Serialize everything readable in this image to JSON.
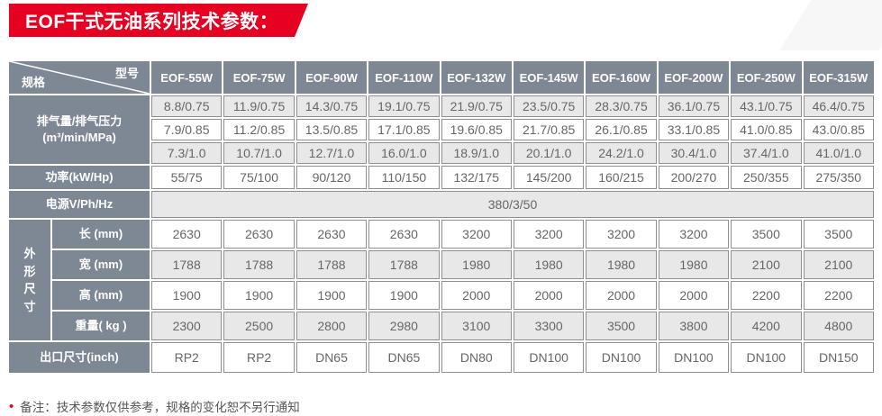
{
  "title": "EOF干式无油系列技术参数：",
  "colors": {
    "accent_red": "#e60021",
    "header_slate": "#7e8794",
    "row_shade": "#e8e8e8",
    "cell_border": "#8f8f8f",
    "data_text": "#666666"
  },
  "table": {
    "corner": {
      "top_right": "型号",
      "bottom_left": "规格"
    },
    "columns": [
      "EOF-55W",
      "EOF-75W",
      "EOF-90W",
      "EOF-110W",
      "EOF-132W",
      "EOF-145W",
      "EOF-160W",
      "EOF-200W",
      "EOF-250W",
      "EOF-315W"
    ],
    "rows": [
      {
        "label": "排气量/排气压力\n(m³/min/MPa)",
        "label_rowspan": 3,
        "shaded": true,
        "values": [
          "8.8/0.75",
          "11.9/0.75",
          "14.3/0.75",
          "19.1/0.75",
          "21.9/0.75",
          "23.5/0.75",
          "28.3/0.75",
          "36.1/0.75",
          "43.1/0.75",
          "46.4/0.75"
        ]
      },
      {
        "shaded": false,
        "values": [
          "7.9/0.85",
          "11.2/0.85",
          "13.5/0.85",
          "17.1/0.85",
          "19.6/0.85",
          "21.7/0.85",
          "26.1/0.85",
          "33.1/0.85",
          "41.0/0.85",
          "43.0/0.85"
        ]
      },
      {
        "shaded": true,
        "values": [
          "7.3/1.0",
          "10.7/1.0",
          "12.7/1.0",
          "16.0/1.0",
          "18.9/1.0",
          "20.1/1.0",
          "24.2/1.0",
          "30.4/1.0",
          "37.4/1.0",
          "41.0/1.0"
        ]
      },
      {
        "label": "功率(kW/Hp)",
        "shaded": false,
        "values": [
          "55/75",
          "75/100",
          "90/120",
          "110/150",
          "132/175",
          "145/200",
          "160/215",
          "200/270",
          "250/355",
          "275/350"
        ]
      },
      {
        "label": "电源V/Ph/Hz",
        "shaded": true,
        "merged_value": "380/3/50"
      },
      {
        "group_label": "外形尺寸",
        "group_rowspan": 4,
        "sublabel": "长 (mm)",
        "shaded": false,
        "values": [
          "2630",
          "2630",
          "2630",
          "2630",
          "3200",
          "3200",
          "3200",
          "3200",
          "3500",
          "3500"
        ]
      },
      {
        "sublabel": "宽 (mm)",
        "shaded": true,
        "values": [
          "1788",
          "1788",
          "1788",
          "1788",
          "1980",
          "1980",
          "1980",
          "1980",
          "2100",
          "2100"
        ]
      },
      {
        "sublabel": "高 (mm)",
        "shaded": false,
        "values": [
          "1900",
          "1900",
          "1900",
          "1900",
          "2000",
          "2000",
          "2000",
          "2000",
          "2200",
          "2200"
        ]
      },
      {
        "sublabel": "重量( kg )",
        "shaded": true,
        "values": [
          "2300",
          "2500",
          "2800",
          "2980",
          "3100",
          "3300",
          "3500",
          "3800",
          "4200",
          "4800"
        ]
      },
      {
        "label": "出口尺寸(inch)",
        "shaded": false,
        "values": [
          "RP2",
          "RP2",
          "DN65",
          "DN65",
          "DN80",
          "DN100",
          "DN100",
          "DN100",
          "DN100",
          "DN150"
        ]
      }
    ]
  },
  "footer": {
    "bullet": "•",
    "note": "备注：技术参数仅供参考，规格的变化恕不另行通知"
  }
}
